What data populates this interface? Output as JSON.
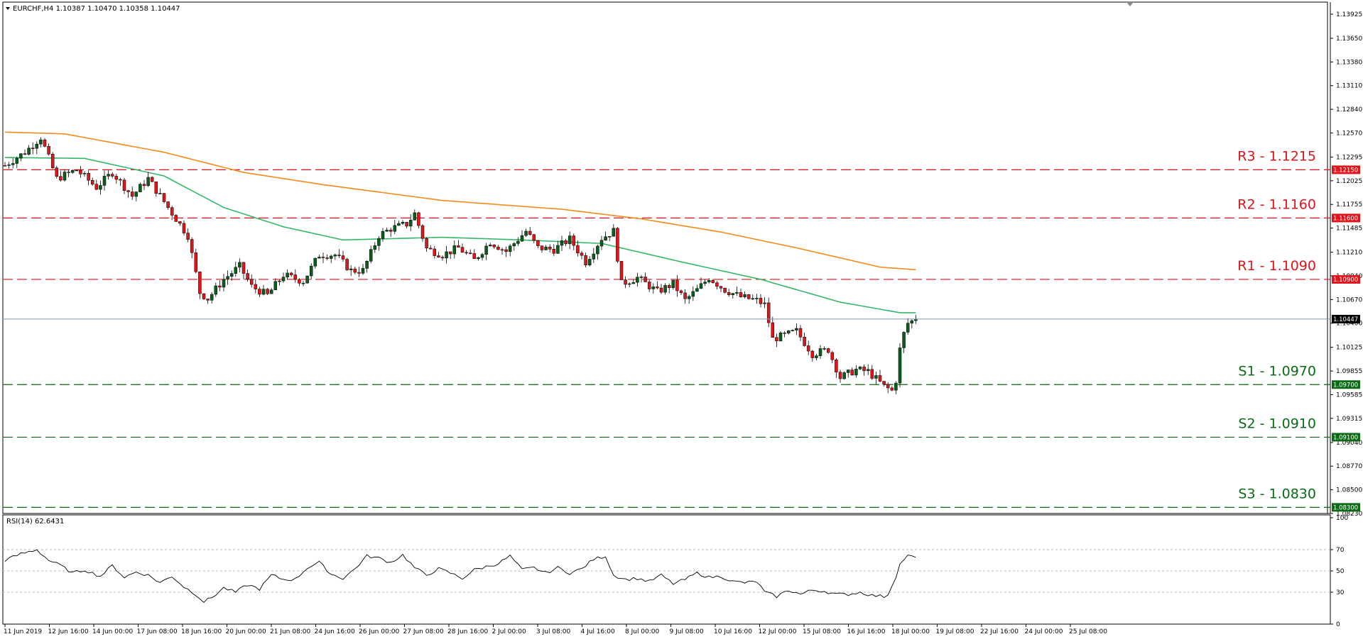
{
  "header": {
    "symbol_info": "EURCHF,H4  1.10387 1.10470 1.10358 1.10447"
  },
  "rsi_header": "RSI(14) 62.6431",
  "colors": {
    "bull": "#0b5d1e",
    "bear": "#e0141a",
    "ma_fast": "#33b86b",
    "ma_slow": "#f28c1b",
    "resistance": "#e0141a",
    "support": "#0b6b14",
    "price_line": "#7f95ad"
  },
  "chart_data": [
    {
      "type": "candlestick",
      "title": "EURCHF,H4",
      "ylim": [
        1.0823,
        1.1403
      ],
      "y_ticks": [
        "1.13925",
        "1.13650",
        "1.13380",
        "1.13110",
        "1.12840",
        "1.12570",
        "1.12295",
        "1.12025",
        "1.11755",
        "1.11485",
        "1.11210",
        "1.10940",
        "1.10670",
        "1.10400",
        "1.10125",
        "1.09855",
        "1.09585",
        "1.09315",
        "1.09040",
        "1.08770",
        "1.08500",
        "1.08230"
      ],
      "x_ticks": [
        "11 Jun 2019",
        "12 Jun 16:00",
        "14 Jun 00:00",
        "17 Jun 08:00",
        "18 Jun 16:00",
        "20 Jun 00:00",
        "21 Jun 08:00",
        "24 Jun 16:00",
        "26 Jun 00:00",
        "27 Jun 08:00",
        "28 Jun 16:00",
        "2 Jul 00:00",
        "3 Jul 08:00",
        "4 Jul 16:00",
        "8 Jul 00:00",
        "9 Jul 08:00",
        "10 Jul 16:00",
        "12 Jul 00:00",
        "15 Jul 08:00",
        "16 Jul 16:00",
        "18 Jul 00:00",
        "19 Jul 08:00",
        "22 Jul 16:00",
        "24 Jul 00:00",
        "25 Jul 08:00"
      ],
      "last_price": 1.10447,
      "close_path": [
        {
          "i": 0,
          "v": 1.122
        },
        {
          "i": 5,
          "v": 1.1235
        },
        {
          "i": 9,
          "v": 1.1252
        },
        {
          "i": 13,
          "v": 1.1205
        },
        {
          "i": 18,
          "v": 1.1215
        },
        {
          "i": 23,
          "v": 1.1195
        },
        {
          "i": 27,
          "v": 1.1212
        },
        {
          "i": 32,
          "v": 1.1185
        },
        {
          "i": 36,
          "v": 1.1205
        },
        {
          "i": 41,
          "v": 1.1172
        },
        {
          "i": 46,
          "v": 1.114
        },
        {
          "i": 49,
          "v": 1.1075
        },
        {
          "i": 51,
          "v": 1.1068
        },
        {
          "i": 55,
          "v": 1.109
        },
        {
          "i": 59,
          "v": 1.1105
        },
        {
          "i": 62,
          "v": 1.1082
        },
        {
          "i": 66,
          "v": 1.1072
        },
        {
          "i": 70,
          "v": 1.1095
        },
        {
          "i": 75,
          "v": 1.1088
        },
        {
          "i": 79,
          "v": 1.1118
        },
        {
          "i": 83,
          "v": 1.1118
        },
        {
          "i": 87,
          "v": 1.11
        },
        {
          "i": 90,
          "v": 1.11
        },
        {
          "i": 94,
          "v": 1.114
        },
        {
          "i": 97,
          "v": 1.1148
        },
        {
          "i": 101,
          "v": 1.1153
        },
        {
          "i": 103,
          "v": 1.1165
        },
        {
          "i": 106,
          "v": 1.1125
        },
        {
          "i": 110,
          "v": 1.1118
        },
        {
          "i": 114,
          "v": 1.1126
        },
        {
          "i": 118,
          "v": 1.1112
        },
        {
          "i": 122,
          "v": 1.1133
        },
        {
          "i": 126,
          "v": 1.1122
        },
        {
          "i": 131,
          "v": 1.1145
        },
        {
          "i": 134,
          "v": 1.1126
        },
        {
          "i": 138,
          "v": 1.1124
        },
        {
          "i": 142,
          "v": 1.1136
        },
        {
          "i": 146,
          "v": 1.111
        },
        {
          "i": 150,
          "v": 1.1137
        },
        {
          "i": 153,
          "v": 1.1145
        },
        {
          "i": 155,
          "v": 1.1085
        },
        {
          "i": 159,
          "v": 1.1092
        },
        {
          "i": 164,
          "v": 1.1076
        },
        {
          "i": 168,
          "v": 1.1085
        },
        {
          "i": 171,
          "v": 1.1066
        },
        {
          "i": 174,
          "v": 1.1078
        },
        {
          "i": 177,
          "v": 1.1092
        },
        {
          "i": 181,
          "v": 1.1078
        },
        {
          "i": 185,
          "v": 1.107
        },
        {
          "i": 189,
          "v": 1.1066
        },
        {
          "i": 191,
          "v": 1.1061
        },
        {
          "i": 193,
          "v": 1.1022
        },
        {
          "i": 196,
          "v": 1.1026
        },
        {
          "i": 199,
          "v": 1.1031
        },
        {
          "i": 203,
          "v": 1.1005
        },
        {
          "i": 207,
          "v": 1.101
        },
        {
          "i": 210,
          "v": 1.0978
        },
        {
          "i": 214,
          "v": 1.0987
        },
        {
          "i": 217,
          "v": 1.0985
        },
        {
          "i": 221,
          "v": 1.0968
        },
        {
          "i": 223,
          "v": 1.0963
        },
        {
          "i": 224,
          "v": 1.0975
        },
        {
          "i": 225,
          "v": 1.101
        },
        {
          "i": 226,
          "v": 1.1028
        },
        {
          "i": 227,
          "v": 1.104
        },
        {
          "i": 229,
          "v": 1.10447
        }
      ],
      "moving_averages": [
        {
          "name": "",
          "color": "#33b86b",
          "points": [
            {
              "i": 0,
              "v": 1.1229
            },
            {
              "i": 20,
              "v": 1.1228
            },
            {
              "i": 40,
              "v": 1.1208
            },
            {
              "i": 55,
              "v": 1.1172
            },
            {
              "i": 70,
              "v": 1.115
            },
            {
              "i": 85,
              "v": 1.1135
            },
            {
              "i": 110,
              "v": 1.1138
            },
            {
              "i": 130,
              "v": 1.1135
            },
            {
              "i": 150,
              "v": 1.1131
            },
            {
              "i": 170,
              "v": 1.111
            },
            {
              "i": 190,
              "v": 1.109
            },
            {
              "i": 210,
              "v": 1.1064
            },
            {
              "i": 225,
              "v": 1.1052
            },
            {
              "i": 229,
              "v": 1.1052
            }
          ]
        },
        {
          "name": "",
          "color": "#f28c1b",
          "points": [
            {
              "i": 0,
              "v": 1.1258
            },
            {
              "i": 15,
              "v": 1.1256
            },
            {
              "i": 40,
              "v": 1.1235
            },
            {
              "i": 60,
              "v": 1.1212
            },
            {
              "i": 80,
              "v": 1.1198
            },
            {
              "i": 110,
              "v": 1.118
            },
            {
              "i": 140,
              "v": 1.117
            },
            {
              "i": 160,
              "v": 1.1159
            },
            {
              "i": 180,
              "v": 1.1144
            },
            {
              "i": 200,
              "v": 1.1125
            },
            {
              "i": 220,
              "v": 1.1104
            },
            {
              "i": 229,
              "v": 1.1101
            }
          ]
        }
      ],
      "levels": [
        {
          "label": "R3 - 1.1215",
          "value": 1.1215,
          "tag": "1.12150",
          "kind": "resistance"
        },
        {
          "label": "R2 - 1.1160",
          "value": 1.116,
          "tag": "1.11600",
          "kind": "resistance"
        },
        {
          "label": "R1 - 1.1090",
          "value": 1.109,
          "tag": "1.10900",
          "kind": "resistance"
        },
        {
          "label": "S1 - 1.0970",
          "value": 1.097,
          "tag": "1.09700",
          "kind": "support"
        },
        {
          "label": "S2 - 1.0910",
          "value": 1.091,
          "tag": "1.09100",
          "kind": "support"
        },
        {
          "label": "S3 - 1.0830",
          "value": 1.083,
          "tag": "1.08300",
          "kind": "support"
        }
      ],
      "grid": false
    },
    {
      "type": "line",
      "title": "RSI(14) 62.6431",
      "ylim": [
        0,
        100
      ],
      "y_ticks": [
        "100",
        "70",
        "50",
        "30",
        "0"
      ],
      "levels": [
        70,
        50,
        30
      ],
      "last_value": 62.6431,
      "path": [
        {
          "i": 0,
          "v": 60
        },
        {
          "i": 4,
          "v": 66
        },
        {
          "i": 8,
          "v": 70
        },
        {
          "i": 11,
          "v": 60
        },
        {
          "i": 14,
          "v": 55
        },
        {
          "i": 17,
          "v": 48
        },
        {
          "i": 20,
          "v": 51
        },
        {
          "i": 24,
          "v": 45
        },
        {
          "i": 27,
          "v": 55
        },
        {
          "i": 30,
          "v": 44
        },
        {
          "i": 33,
          "v": 49
        },
        {
          "i": 36,
          "v": 46
        },
        {
          "i": 39,
          "v": 39
        },
        {
          "i": 42,
          "v": 45
        },
        {
          "i": 45,
          "v": 35
        },
        {
          "i": 48,
          "v": 28
        },
        {
          "i": 50,
          "v": 21
        },
        {
          "i": 52,
          "v": 25
        },
        {
          "i": 55,
          "v": 34
        },
        {
          "i": 58,
          "v": 30
        },
        {
          "i": 61,
          "v": 37
        },
        {
          "i": 64,
          "v": 33
        },
        {
          "i": 67,
          "v": 46
        },
        {
          "i": 70,
          "v": 42
        },
        {
          "i": 73,
          "v": 42
        },
        {
          "i": 76,
          "v": 53
        },
        {
          "i": 79,
          "v": 58
        },
        {
          "i": 82,
          "v": 47
        },
        {
          "i": 85,
          "v": 43
        },
        {
          "i": 88,
          "v": 52
        },
        {
          "i": 91,
          "v": 64
        },
        {
          "i": 94,
          "v": 62
        },
        {
          "i": 97,
          "v": 58
        },
        {
          "i": 100,
          "v": 65
        },
        {
          "i": 103,
          "v": 53
        },
        {
          "i": 106,
          "v": 46
        },
        {
          "i": 109,
          "v": 52
        },
        {
          "i": 112,
          "v": 48
        },
        {
          "i": 115,
          "v": 43
        },
        {
          "i": 118,
          "v": 51
        },
        {
          "i": 121,
          "v": 54
        },
        {
          "i": 124,
          "v": 57
        },
        {
          "i": 127,
          "v": 64
        },
        {
          "i": 130,
          "v": 51
        },
        {
          "i": 133,
          "v": 53
        },
        {
          "i": 136,
          "v": 48
        },
        {
          "i": 139,
          "v": 53
        },
        {
          "i": 142,
          "v": 48
        },
        {
          "i": 145,
          "v": 52
        },
        {
          "i": 148,
          "v": 61
        },
        {
          "i": 151,
          "v": 64
        },
        {
          "i": 153,
          "v": 46
        },
        {
          "i": 156,
          "v": 42
        },
        {
          "i": 159,
          "v": 43
        },
        {
          "i": 162,
          "v": 40
        },
        {
          "i": 165,
          "v": 46
        },
        {
          "i": 168,
          "v": 38
        },
        {
          "i": 171,
          "v": 42
        },
        {
          "i": 174,
          "v": 48
        },
        {
          "i": 177,
          "v": 44
        },
        {
          "i": 180,
          "v": 45
        },
        {
          "i": 183,
          "v": 40
        },
        {
          "i": 186,
          "v": 39
        },
        {
          "i": 189,
          "v": 40
        },
        {
          "i": 191,
          "v": 30
        },
        {
          "i": 194,
          "v": 26
        },
        {
          "i": 197,
          "v": 32
        },
        {
          "i": 200,
          "v": 28
        },
        {
          "i": 203,
          "v": 32
        },
        {
          "i": 206,
          "v": 31
        },
        {
          "i": 209,
          "v": 28
        },
        {
          "i": 212,
          "v": 28
        },
        {
          "i": 215,
          "v": 30
        },
        {
          "i": 218,
          "v": 27
        },
        {
          "i": 221,
          "v": 26
        },
        {
          "i": 222,
          "v": 28
        },
        {
          "i": 224,
          "v": 45
        },
        {
          "i": 225,
          "v": 56
        },
        {
          "i": 226,
          "v": 61
        },
        {
          "i": 227,
          "v": 64
        },
        {
          "i": 229,
          "v": 62.6
        }
      ]
    }
  ]
}
